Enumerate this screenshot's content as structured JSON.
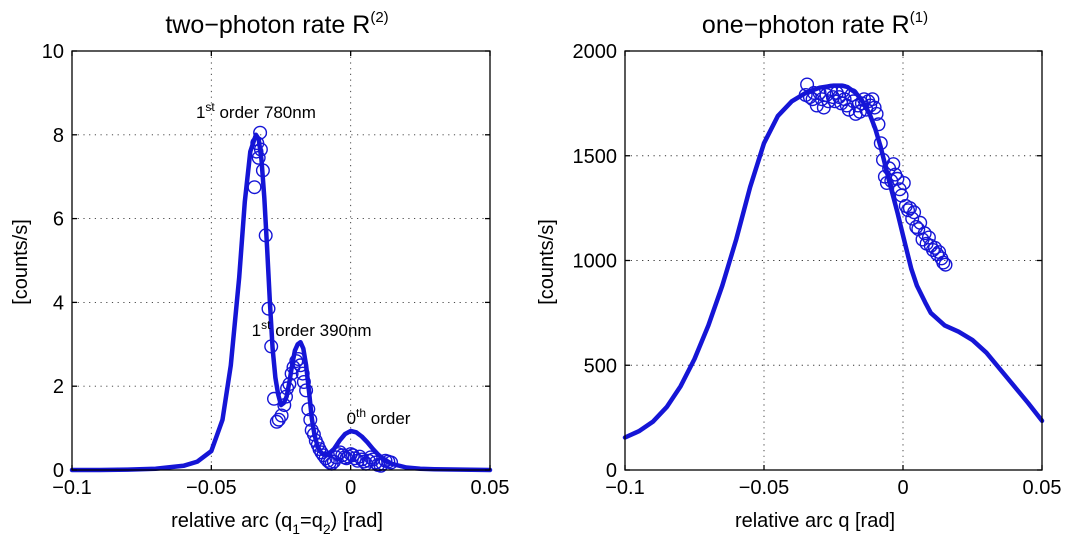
{
  "colors": {
    "series": "#1515d6",
    "axes": "#000000",
    "background": "#ffffff"
  },
  "chart_data": [
    {
      "type": "line",
      "title": {
        "text": "two−photon rate R",
        "sup": "(2)"
      },
      "xlabel": {
        "pre": "relative arc (q",
        "sub1": "1",
        "mid": "=q",
        "sub2": "2",
        "post": ") [rad]"
      },
      "ylabel": "[counts/s]",
      "xlim": [
        -0.1,
        0.05
      ],
      "ylim": [
        0,
        10
      ],
      "xticks": [
        -0.1,
        -0.05,
        0,
        0.05
      ],
      "xtick_labels": [
        "−0.1",
        "−0.05",
        "0",
        "0.05"
      ],
      "yticks": [
        0,
        2,
        4,
        6,
        8,
        10
      ],
      "ytick_labels": [
        "0",
        "2",
        "4",
        "6",
        "8",
        "10"
      ],
      "grid": true,
      "annotations": [
        {
          "pre": "1",
          "sup": "st",
          "post": " order 780nm",
          "x": -0.034,
          "y": 8.4
        },
        {
          "pre": "1",
          "sup": "st",
          "post": " order 390nm",
          "x": -0.014,
          "y": 3.2
        },
        {
          "pre": "0",
          "sup": "th",
          "post": " order",
          "x": 0.01,
          "y": 1.1
        }
      ],
      "series": [
        {
          "kind": "line",
          "x": [
            -0.1,
            -0.09,
            -0.08,
            -0.07,
            -0.06,
            -0.055,
            -0.05,
            -0.046,
            -0.043,
            -0.04,
            -0.038,
            -0.036,
            -0.034,
            -0.033,
            -0.032,
            -0.031,
            -0.03,
            -0.029,
            -0.028,
            -0.027,
            -0.026,
            -0.025,
            -0.024,
            -0.023,
            -0.022,
            -0.021,
            -0.02,
            -0.019,
            -0.018,
            -0.017,
            -0.016,
            -0.015,
            -0.014,
            -0.013,
            -0.012,
            -0.011,
            -0.01,
            -0.009,
            -0.008,
            -0.006,
            -0.004,
            -0.002,
            0.0,
            0.002,
            0.004,
            0.006,
            0.008,
            0.01,
            0.012,
            0.015,
            0.02,
            0.025,
            0.03,
            0.04,
            0.05
          ],
          "y": [
            0.0,
            0.0,
            0.01,
            0.03,
            0.1,
            0.2,
            0.45,
            1.2,
            2.5,
            4.6,
            6.4,
            7.6,
            8.0,
            7.9,
            7.4,
            6.5,
            5.3,
            4.0,
            2.9,
            2.2,
            1.8,
            1.55,
            1.6,
            1.75,
            2.1,
            2.5,
            2.85,
            3.0,
            3.05,
            2.9,
            2.5,
            1.9,
            1.25,
            0.85,
            0.6,
            0.45,
            0.38,
            0.36,
            0.38,
            0.5,
            0.7,
            0.86,
            0.93,
            0.9,
            0.8,
            0.66,
            0.5,
            0.36,
            0.25,
            0.14,
            0.06,
            0.03,
            0.02,
            0.01,
            0.0
          ]
        },
        {
          "kind": "markers",
          "x": [
            -0.0345,
            -0.0335,
            -0.0338,
            -0.0325,
            -0.033,
            -0.0322,
            -0.0315,
            -0.0305,
            -0.0295,
            -0.0285,
            -0.0275,
            -0.0265,
            -0.0258,
            -0.0248,
            -0.0238,
            -0.0232,
            -0.0228,
            -0.022,
            -0.0212,
            -0.0205,
            -0.0195,
            -0.0188,
            -0.018,
            -0.0172,
            -0.0168,
            -0.016,
            -0.0152,
            -0.0145,
            -0.014,
            -0.0132,
            -0.0125,
            -0.0118,
            -0.0112,
            -0.0105,
            -0.0098,
            -0.009,
            -0.0082,
            -0.0075,
            -0.0068,
            -0.006,
            -0.0052,
            -0.0045,
            -0.0038,
            -0.003,
            -0.0022,
            -0.0015,
            -0.0008,
            0.0,
            0.0008,
            0.0015,
            0.0025,
            0.0032,
            0.004,
            0.0048,
            0.0055,
            0.0065,
            0.0072,
            0.008,
            0.009,
            0.0098,
            0.0108,
            0.0115,
            0.0125,
            0.0135,
            0.0145
          ],
          "y": [
            6.75,
            7.8,
            7.6,
            8.05,
            7.45,
            7.65,
            7.15,
            5.6,
            3.85,
            2.95,
            1.7,
            1.15,
            1.2,
            1.3,
            1.55,
            1.75,
            1.95,
            2.05,
            2.3,
            2.45,
            2.6,
            2.65,
            2.5,
            2.3,
            2.1,
            1.9,
            1.45,
            1.2,
            0.95,
            0.85,
            0.7,
            0.6,
            0.5,
            0.42,
            0.35,
            0.28,
            0.22,
            0.18,
            0.15,
            0.2,
            0.3,
            0.38,
            0.42,
            0.35,
            0.3,
            0.28,
            0.32,
            0.38,
            0.35,
            0.28,
            0.22,
            0.32,
            0.25,
            0.2,
            0.15,
            0.22,
            0.3,
            0.25,
            0.18,
            0.12,
            0.1,
            0.15,
            0.22,
            0.2,
            0.18
          ]
        }
      ]
    },
    {
      "type": "line",
      "title": {
        "text": "one−photon rate R",
        "sup": "(1)"
      },
      "xlabel": {
        "pre": "relative arc q [rad]"
      },
      "ylabel": "[counts/s]",
      "xlim": [
        -0.1,
        0.05
      ],
      "ylim": [
        0,
        2000
      ],
      "xticks": [
        -0.1,
        -0.05,
        0,
        0.05
      ],
      "xtick_labels": [
        "−0.1",
        "−0.05",
        "0",
        "0.05"
      ],
      "yticks": [
        0,
        500,
        1000,
        1500,
        2000
      ],
      "ytick_labels": [
        "0",
        "500",
        "1000",
        "1500",
        "2000"
      ],
      "grid": true,
      "series": [
        {
          "kind": "line",
          "x": [
            -0.1,
            -0.095,
            -0.09,
            -0.085,
            -0.08,
            -0.075,
            -0.07,
            -0.065,
            -0.06,
            -0.055,
            -0.05,
            -0.045,
            -0.04,
            -0.035,
            -0.03,
            -0.025,
            -0.022,
            -0.02,
            -0.017,
            -0.015,
            -0.012,
            -0.01,
            -0.008,
            -0.005,
            -0.002,
            0.0,
            0.003,
            0.005,
            0.008,
            0.01,
            0.015,
            0.02,
            0.025,
            0.03,
            0.035,
            0.04,
            0.045,
            0.05
          ],
          "y": [
            155,
            185,
            230,
            300,
            400,
            530,
            690,
            880,
            1100,
            1350,
            1560,
            1690,
            1760,
            1800,
            1825,
            1835,
            1835,
            1828,
            1800,
            1770,
            1700,
            1630,
            1540,
            1380,
            1230,
            1120,
            960,
            880,
            800,
            750,
            690,
            660,
            620,
            560,
            480,
            400,
            320,
            235
          ]
        },
        {
          "kind": "markers",
          "x": [
            -0.035,
            -0.0345,
            -0.0335,
            -0.0325,
            -0.032,
            -0.031,
            -0.03,
            -0.0292,
            -0.0285,
            -0.0275,
            -0.0268,
            -0.026,
            -0.0252,
            -0.0245,
            -0.0238,
            -0.023,
            -0.0222,
            -0.0215,
            -0.021,
            -0.0202,
            -0.0195,
            -0.0185,
            -0.0178,
            -0.017,
            -0.0162,
            -0.0155,
            -0.0148,
            -0.014,
            -0.0132,
            -0.0125,
            -0.0118,
            -0.011,
            -0.0102,
            -0.0095,
            -0.0088,
            -0.008,
            -0.0072,
            -0.0065,
            -0.0058,
            -0.005,
            -0.0042,
            -0.0035,
            -0.0028,
            -0.002,
            -0.0012,
            -0.0005,
            0.0003,
            0.001,
            0.0018,
            0.0025,
            0.0033,
            0.004,
            0.0048,
            0.0055,
            0.0062,
            0.007,
            0.0078,
            0.0085,
            0.0093,
            0.01,
            0.0108,
            0.0115,
            0.0123,
            0.013,
            0.0138,
            0.0145,
            0.0153
          ],
          "y": [
            1790,
            1840,
            1780,
            1770,
            1800,
            1740,
            1800,
            1770,
            1730,
            1790,
            1760,
            1810,
            1780,
            1760,
            1800,
            1780,
            1750,
            1810,
            1770,
            1740,
            1720,
            1790,
            1760,
            1700,
            1740,
            1710,
            1750,
            1770,
            1720,
            1760,
            1740,
            1770,
            1730,
            1700,
            1650,
            1560,
            1480,
            1400,
            1370,
            1440,
            1380,
            1460,
            1410,
            1390,
            1340,
            1310,
            1370,
            1260,
            1240,
            1250,
            1200,
            1230,
            1160,
            1150,
            1180,
            1100,
            1130,
            1080,
            1110,
            1070,
            1050,
            1060,
            1030,
            1040,
            1010,
            990,
            980
          ]
        }
      ]
    }
  ]
}
